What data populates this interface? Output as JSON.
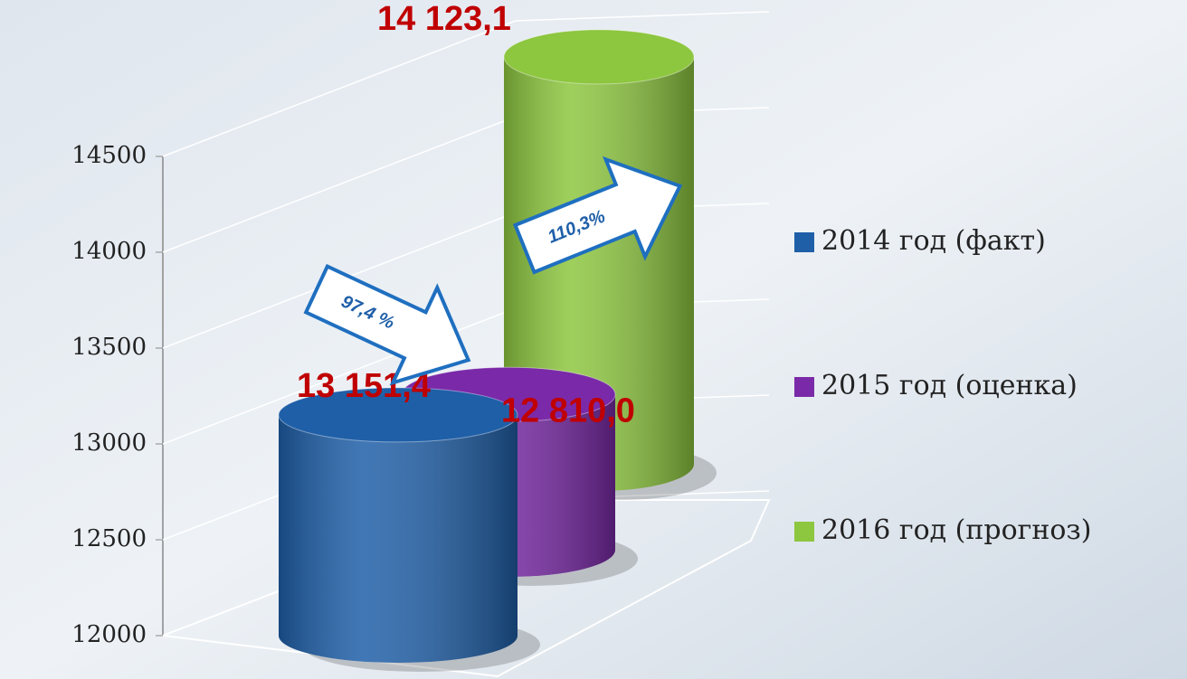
{
  "chart_data": {
    "type": "cylinder",
    "categories": [
      null
    ],
    "series": [
      {
        "name": "2014 год (факт)",
        "color": "#1f5fa8",
        "values": [
          13151.4
        ],
        "value_labels": [
          "13 151,4"
        ]
      },
      {
        "name": "2015 год (оценка)",
        "color": "#7a2aa8",
        "values": [
          12810.0
        ],
        "value_labels": [
          "12 810,0"
        ]
      },
      {
        "name": "2016 год (прогноз)",
        "color": "#8dc63f",
        "values": [
          14123.1
        ],
        "value_labels": [
          "14 123,1"
        ]
      }
    ],
    "annotations": [
      "97,4 %",
      "110,3%"
    ],
    "ylim": [
      12000,
      14500
    ],
    "yticks": [
      12000,
      12500,
      13000,
      13500,
      14000,
      14500
    ],
    "grid": true,
    "legend": "right"
  }
}
